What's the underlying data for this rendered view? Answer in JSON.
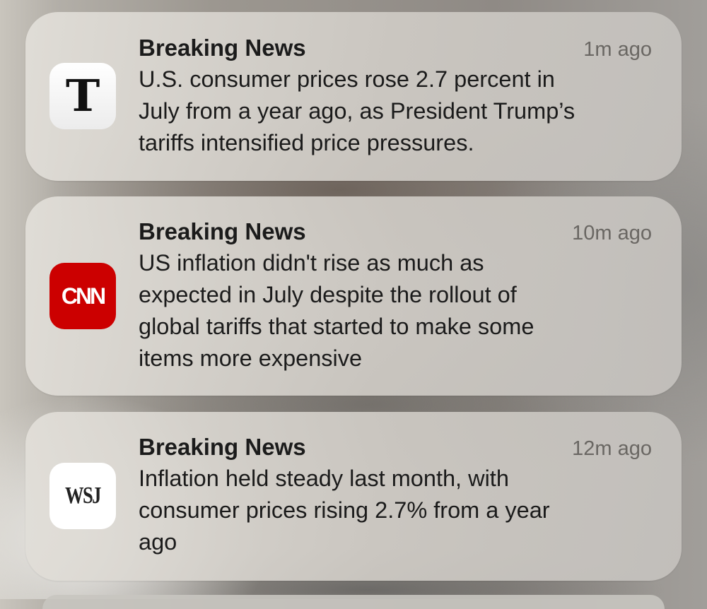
{
  "notifications": [
    {
      "app": "The New York Times",
      "icon": "nyt-logo-icon",
      "icon_glyph": "T",
      "title": "Breaking News",
      "time": "1m ago",
      "lines": [
        "U.S. consumer prices rose 2.7 percent in",
        "July from a year ago, as President Trump’s",
        "tariffs intensified price pressures."
      ]
    },
    {
      "app": "CNN",
      "icon": "cnn-logo-icon",
      "icon_glyph": "CNN",
      "brand_color": "#cc0000",
      "title": "Breaking News",
      "time": "10m ago",
      "lines": [
        "US inflation didn't rise as much as",
        "expected in July despite the rollout of",
        "global tariffs that started to make some",
        "items more expensive"
      ]
    },
    {
      "app": "WSJ",
      "icon": "wsj-logo-icon",
      "icon_glyph": "WSJ",
      "title": "Breaking News",
      "time": "12m ago",
      "lines": [
        "Inflation held steady last month, with",
        "consumer prices rising 2.7% from a year",
        "ago"
      ]
    }
  ]
}
